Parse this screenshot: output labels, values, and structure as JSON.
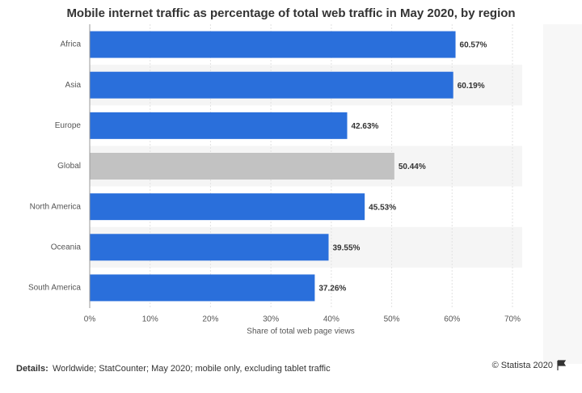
{
  "chart_data": {
    "type": "bar",
    "orientation": "horizontal",
    "title": "Mobile internet traffic as percentage of total web traffic in May 2020, by region",
    "categories": [
      "Africa",
      "Asia",
      "Europe",
      "Global",
      "North America",
      "Oceania",
      "South America"
    ],
    "values": [
      60.57,
      60.19,
      42.63,
      50.44,
      45.53,
      39.55,
      37.26
    ],
    "value_labels": [
      "60.57%",
      "60.19%",
      "42.63%",
      "50.44%",
      "45.53%",
      "39.55%",
      "37.26%"
    ],
    "colors": [
      "#2a6fdb",
      "#2a6fdb",
      "#2a6fdb",
      "#c2c2c2",
      "#2a6fdb",
      "#2a6fdb",
      "#2a6fdb"
    ],
    "xlim": [
      0,
      70
    ],
    "xticks": [
      {
        "value": 0,
        "label": "0%"
      },
      {
        "value": 10,
        "label": "10%"
      },
      {
        "value": 20,
        "label": "20%"
      },
      {
        "value": 30,
        "label": "30%"
      },
      {
        "value": 40,
        "label": "40%"
      },
      {
        "value": 50,
        "label": "50%"
      },
      {
        "value": 60,
        "label": "60%"
      },
      {
        "value": 70,
        "label": "70%"
      }
    ],
    "xlabel": "Share of total web page views",
    "grid": true,
    "details_label": "Details:",
    "details": "Worldwide; StatCounter; May 2020; mobile only, excluding tablet traffic",
    "source": "© Statista 2020"
  }
}
